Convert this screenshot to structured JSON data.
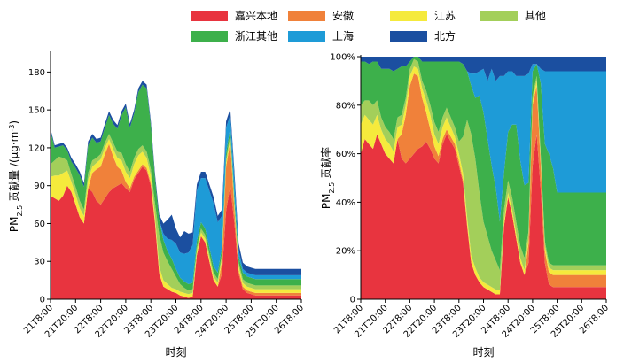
{
  "legend": [
    {
      "name": "嘉兴本地",
      "color": "#E8343F"
    },
    {
      "name": "安徽",
      "color": "#F0813A"
    },
    {
      "name": "江苏",
      "color": "#F5EA3C"
    },
    {
      "name": "其他",
      "color": "#A3CF5A"
    },
    {
      "name": "浙江其他",
      "color": "#3DB04B"
    },
    {
      "name": "上海",
      "color": "#1E9BD7"
    },
    {
      "name": "北方",
      "color": "#1B4FA0"
    }
  ],
  "chart_data": [
    {
      "type": "area",
      "stacked": true,
      "xlabel": "时刻",
      "ylabel": "PM2.5 贡献量 /(μg·m⁻³)",
      "ylabel_parts": {
        "base": "PM",
        "sub": "2.5",
        "rest": " 贡献量 /(μg·m",
        "sup": "-3",
        "close": ")"
      },
      "ylim": [
        0,
        195
      ],
      "yticks": [
        0,
        30,
        60,
        90,
        120,
        150,
        180
      ],
      "xticks": [
        "21T8:00",
        "21T20:00",
        "22T8:00",
        "22T20:00",
        "23T8:00",
        "23T20:00",
        "24T8:00",
        "24T20:00",
        "25T8:00",
        "25T20:00",
        "26T8:00"
      ],
      "x": [
        0,
        2,
        4,
        6,
        8,
        10,
        12,
        14,
        16,
        18,
        20,
        22,
        24,
        26,
        28,
        30,
        32,
        34,
        36,
        38,
        40,
        42,
        44,
        46,
        48,
        50,
        52,
        54,
        56,
        58,
        60,
        62,
        64,
        66,
        68,
        70,
        72,
        74,
        76,
        78,
        80,
        82,
        84,
        86,
        88,
        90,
        92,
        94,
        96,
        98,
        100,
        102,
        104,
        106,
        108,
        110,
        112,
        114,
        116,
        118,
        120
      ],
      "series": [
        {
          "name": "嘉兴本地",
          "values": [
            82,
            80,
            78,
            82,
            90,
            85,
            75,
            65,
            60,
            88,
            85,
            78,
            75,
            80,
            85,
            88,
            90,
            92,
            88,
            85,
            95,
            100,
            105,
            102,
            90,
            60,
            20,
            10,
            8,
            6,
            5,
            3,
            2,
            1,
            2,
            35,
            50,
            45,
            30,
            15,
            10,
            20,
            70,
            90,
            60,
            20,
            8,
            5,
            4,
            3,
            3,
            3,
            3,
            3,
            3,
            3,
            3,
            3,
            3,
            3,
            3
          ]
        },
        {
          "name": "安徽",
          "values": [
            0,
            0,
            0,
            0,
            0,
            0,
            0,
            0,
            0,
            0,
            15,
            25,
            30,
            35,
            38,
            25,
            15,
            10,
            5,
            3,
            2,
            2,
            2,
            2,
            2,
            1,
            1,
            0,
            0,
            0,
            0,
            0,
            0,
            0,
            0,
            0,
            0,
            0,
            0,
            0,
            0,
            10,
            35,
            35,
            10,
            3,
            2,
            2,
            2,
            2,
            2,
            2,
            2,
            2,
            2,
            2,
            2,
            2,
            2,
            2,
            2
          ]
        },
        {
          "name": "江苏",
          "values": [
            15,
            18,
            20,
            18,
            12,
            8,
            8,
            7,
            6,
            7,
            5,
            5,
            6,
            5,
            4,
            6,
            7,
            8,
            8,
            8,
            10,
            12,
            10,
            8,
            6,
            5,
            5,
            5,
            4,
            3,
            3,
            3,
            3,
            3,
            3,
            3,
            3,
            3,
            3,
            3,
            3,
            3,
            3,
            3,
            3,
            3,
            3,
            3,
            3,
            3,
            3,
            3,
            3,
            3,
            3,
            3,
            3,
            3,
            3,
            3,
            3
          ]
        },
        {
          "name": "其他",
          "values": [
            10,
            12,
            15,
            12,
            8,
            6,
            6,
            6,
            5,
            5,
            5,
            4,
            4,
            4,
            4,
            5,
            5,
            6,
            6,
            5,
            5,
            5,
            5,
            5,
            5,
            10,
            25,
            22,
            18,
            15,
            10,
            6,
            4,
            3,
            3,
            3,
            3,
            3,
            3,
            3,
            3,
            3,
            3,
            3,
            3,
            3,
            3,
            3,
            3,
            3,
            3,
            3,
            3,
            3,
            3,
            3,
            3,
            3,
            3,
            3,
            3
          ]
        },
        {
          "name": "浙江其他",
          "values": [
            26,
            10,
            8,
            10,
            8,
            10,
            15,
            20,
            18,
            22,
            18,
            12,
            10,
            12,
            15,
            15,
            18,
            30,
            45,
            35,
            35,
            45,
            48,
            50,
            35,
            20,
            12,
            10,
            8,
            8,
            6,
            5,
            5,
            5,
            5,
            5,
            5,
            5,
            5,
            5,
            5,
            5,
            5,
            5,
            5,
            5,
            5,
            5,
            5,
            5,
            5,
            5,
            5,
            5,
            5,
            5,
            5,
            5,
            5,
            5,
            5
          ]
        },
        {
          "name": "上海",
          "values": [
            0,
            0,
            0,
            0,
            0,
            0,
            0,
            0,
            0,
            0,
            0,
            0,
            0,
            0,
            0,
            0,
            0,
            0,
            0,
            0,
            0,
            0,
            0,
            0,
            0,
            0,
            0,
            5,
            10,
            15,
            20,
            20,
            22,
            25,
            30,
            40,
            35,
            40,
            45,
            50,
            40,
            25,
            20,
            10,
            15,
            5,
            3,
            3,
            3,
            3,
            3,
            3,
            3,
            3,
            3,
            3,
            3,
            3,
            3,
            3,
            3
          ]
        },
        {
          "name": "北方",
          "values": [
            2,
            2,
            2,
            2,
            2,
            3,
            3,
            3,
            3,
            3,
            3,
            3,
            3,
            3,
            3,
            3,
            3,
            3,
            3,
            3,
            3,
            3,
            3,
            3,
            3,
            3,
            4,
            8,
            15,
            20,
            12,
            12,
            18,
            15,
            10,
            5,
            5,
            5,
            5,
            5,
            5,
            5,
            5,
            5,
            5,
            5,
            5,
            5,
            5,
            5,
            5,
            5,
            5,
            5,
            5,
            5,
            5,
            5,
            5,
            5,
            5
          ]
        }
      ]
    },
    {
      "type": "area",
      "stacked": true,
      "percent": true,
      "xlabel": "时刻",
      "ylabel": "PM2.5 贡献率",
      "ylabel_parts": {
        "base": "PM",
        "sub": "2.5",
        "rest": " 贡献率"
      },
      "ylim": [
        0,
        100
      ],
      "yticks": [
        0,
        20,
        40,
        60,
        80,
        100
      ],
      "ytick_labels": [
        "0",
        "20%",
        "40%",
        "60%",
        "80%",
        "100%"
      ],
      "xticks": [
        "21T8:00",
        "21T20:00",
        "22T8:00",
        "22T20:00",
        "23T8:00",
        "23T20:00",
        "24T8:00",
        "24T20:00",
        "25T8:00",
        "25T20:00",
        "26T8:00"
      ],
      "x": [
        0,
        2,
        4,
        6,
        8,
        10,
        12,
        14,
        16,
        18,
        20,
        22,
        24,
        26,
        28,
        30,
        32,
        34,
        36,
        38,
        40,
        42,
        44,
        46,
        48,
        50,
        52,
        54,
        56,
        58,
        60,
        62,
        64,
        66,
        68,
        70,
        72,
        74,
        76,
        78,
        80,
        82,
        84,
        86,
        88,
        90,
        92,
        94,
        96,
        98,
        100,
        102,
        104,
        106,
        108,
        110,
        112,
        114,
        116,
        118,
        120
      ],
      "series": [
        {
          "name": "嘉兴本地",
          "values": [
            60,
            66,
            64,
            62,
            68,
            64,
            60,
            58,
            56,
            66,
            58,
            56,
            58,
            60,
            62,
            63,
            65,
            62,
            58,
            56,
            64,
            68,
            65,
            62,
            55,
            48,
            30,
            15,
            10,
            7,
            5,
            4,
            3,
            2,
            2,
            30,
            42,
            35,
            25,
            15,
            10,
            15,
            55,
            68,
            45,
            15,
            6,
            5,
            5,
            5,
            5,
            5,
            5,
            5,
            5,
            5,
            5,
            5,
            5,
            5,
            5
          ]
        },
        {
          "name": "安徽",
          "values": [
            0,
            0,
            0,
            0,
            0,
            0,
            0,
            0,
            0,
            0,
            10,
            20,
            30,
            33,
            30,
            20,
            12,
            8,
            5,
            3,
            2,
            2,
            2,
            2,
            2,
            1,
            1,
            0,
            0,
            0,
            0,
            0,
            0,
            0,
            0,
            0,
            0,
            0,
            0,
            0,
            0,
            8,
            25,
            20,
            10,
            5,
            5,
            5,
            5,
            5,
            5,
            5,
            5,
            5,
            5,
            5,
            5,
            5,
            5,
            5,
            5
          ]
        },
        {
          "name": "江苏",
          "values": [
            12,
            10,
            10,
            10,
            8,
            6,
            6,
            6,
            5,
            5,
            4,
            4,
            4,
            3,
            3,
            4,
            5,
            6,
            5,
            5,
            5,
            5,
            4,
            3,
            3,
            3,
            3,
            3,
            3,
            2,
            2,
            2,
            2,
            2,
            2,
            2,
            2,
            2,
            2,
            2,
            2,
            2,
            2,
            2,
            2,
            2,
            2,
            2,
            2,
            2,
            2,
            2,
            2,
            2,
            2,
            2,
            2,
            2,
            2,
            2,
            2
          ]
        },
        {
          "name": "其他",
          "values": [
            8,
            6,
            8,
            8,
            6,
            5,
            5,
            5,
            5,
            4,
            4,
            3,
            3,
            3,
            3,
            3,
            4,
            4,
            5,
            5,
            4,
            4,
            4,
            4,
            5,
            15,
            40,
            50,
            45,
            35,
            25,
            20,
            15,
            12,
            8,
            5,
            5,
            5,
            5,
            5,
            5,
            3,
            2,
            2,
            2,
            2,
            2,
            2,
            2,
            2,
            2,
            2,
            2,
            2,
            2,
            2,
            2,
            2,
            2,
            2,
            2
          ]
        },
        {
          "name": "浙江其他",
          "values": [
            18,
            16,
            15,
            18,
            16,
            20,
            24,
            26,
            28,
            20,
            20,
            13,
            3,
            1,
            2,
            8,
            12,
            18,
            25,
            29,
            23,
            19,
            23,
            27,
            33,
            30,
            20,
            20,
            25,
            40,
            45,
            40,
            35,
            30,
            20,
            15,
            20,
            30,
            40,
            35,
            30,
            20,
            10,
            5,
            30,
            40,
            45,
            40,
            30,
            30,
            30,
            30,
            30,
            30,
            30,
            30,
            30,
            30,
            30,
            30,
            30
          ]
        },
        {
          "name": "上海",
          "values": [
            0,
            0,
            0,
            0,
            0,
            0,
            0,
            0,
            0,
            0,
            0,
            0,
            0,
            0,
            0,
            0,
            0,
            0,
            0,
            0,
            0,
            0,
            0,
            0,
            0,
            0,
            0,
            5,
            10,
            10,
            18,
            24,
            40,
            44,
            60,
            40,
            25,
            22,
            20,
            35,
            45,
            45,
            3,
            0,
            6,
            30,
            34,
            40,
            50,
            50,
            50,
            50,
            50,
            50,
            50,
            50,
            50,
            50,
            50,
            50,
            50
          ]
        },
        {
          "name": "北方",
          "values": [
            2,
            2,
            3,
            2,
            2,
            5,
            5,
            5,
            6,
            5,
            4,
            4,
            2,
            0,
            0,
            2,
            2,
            2,
            2,
            2,
            2,
            2,
            2,
            2,
            2,
            3,
            6,
            7,
            7,
            6,
            5,
            10,
            5,
            10,
            8,
            8,
            6,
            6,
            8,
            8,
            8,
            7,
            3,
            3,
            5,
            6,
            6,
            6,
            6,
            6,
            6,
            6,
            6,
            6,
            6,
            6,
            6,
            6,
            6,
            6,
            6
          ]
        }
      ]
    }
  ]
}
